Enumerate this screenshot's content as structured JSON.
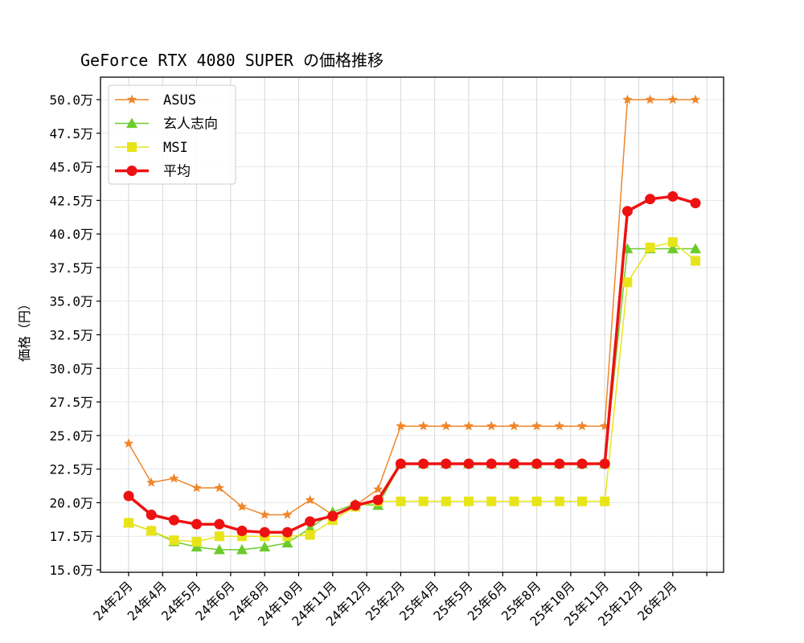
{
  "chart_data": {
    "type": "line",
    "title": "GeForce RTX 4080 SUPER の価格推移",
    "xlabel": "",
    "ylabel": "価格（円）",
    "ylim": [
      15.0,
      50.0
    ],
    "yunit": "万",
    "yticks": [
      15.0,
      17.5,
      20.0,
      22.5,
      25.0,
      27.5,
      30.0,
      32.5,
      35.0,
      37.5,
      40.0,
      42.5,
      45.0,
      47.5,
      50.0
    ],
    "ytick_labels": [
      "15.0万",
      "17.5万",
      "20.0万",
      "22.5万",
      "25.0万",
      "27.5万",
      "30.0万",
      "32.5万",
      "35.0万",
      "37.5万",
      "40.0万",
      "42.5万",
      "45.0万",
      "47.5万",
      "50.0万"
    ],
    "xtick_labels": [
      "24年2月",
      "24年4月",
      "24年5月",
      "24年6月",
      "24年8月",
      "24年10月",
      "24年11月",
      "24年12月",
      "25年2月",
      "25年4月",
      "25年5月",
      "25年6月",
      "25年8月",
      "25年10月",
      "25年11月",
      "25年12月",
      "26年2月"
    ],
    "grid": true,
    "legend_position": "upper left",
    "num_points": 26,
    "series": [
      {
        "name": "ASUS",
        "color": "#f0862a",
        "marker": "star",
        "line_width": 1.5,
        "values": [
          24.4,
          21.5,
          21.8,
          21.1,
          21.1,
          19.7,
          19.1,
          19.1,
          20.2,
          19.1,
          19.8,
          21.0,
          25.7,
          25.7,
          25.7,
          25.7,
          25.7,
          25.7,
          25.7,
          25.7,
          25.7,
          25.7,
          50.0,
          50.0,
          50.0,
          50.0
        ]
      },
      {
        "name": "玄人志向",
        "color": "#6ccb2a",
        "marker": "triangle",
        "line_width": 1.5,
        "values": [
          18.5,
          17.9,
          17.1,
          16.7,
          16.5,
          16.5,
          16.7,
          17.0,
          18.1,
          19.3,
          19.9,
          19.8,
          22.9,
          22.9,
          22.9,
          22.9,
          22.9,
          22.9,
          22.9,
          22.9,
          22.9,
          22.9,
          38.9,
          38.9,
          38.9,
          38.9
        ]
      },
      {
        "name": "MSI",
        "color": "#e8e41a",
        "marker": "square",
        "line_width": 1.5,
        "values": [
          18.5,
          17.9,
          17.2,
          17.1,
          17.5,
          17.5,
          17.5,
          17.5,
          17.6,
          18.7,
          19.7,
          20.1,
          20.1,
          20.1,
          20.1,
          20.1,
          20.1,
          20.1,
          20.1,
          20.1,
          20.1,
          20.1,
          36.4,
          39.0,
          39.4,
          38.0
        ]
      },
      {
        "name": "平均",
        "color": "#ee1111",
        "marker": "circle",
        "line_width": 3.5,
        "values": [
          20.5,
          19.1,
          18.7,
          18.4,
          18.4,
          17.9,
          17.8,
          17.8,
          18.6,
          19.0,
          19.8,
          20.2,
          22.9,
          22.9,
          22.9,
          22.9,
          22.9,
          22.9,
          22.9,
          22.9,
          22.9,
          22.9,
          41.7,
          42.6,
          42.8,
          42.3
        ]
      }
    ]
  }
}
